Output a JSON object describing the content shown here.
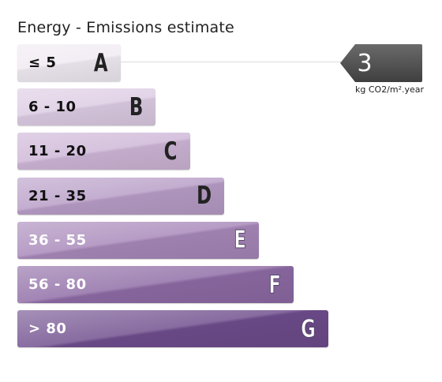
{
  "title": "Energy - Emissions estimate",
  "chart_data": {
    "type": "bar",
    "title": "Energy - Emissions estimate",
    "unit": "kg CO2/m².year",
    "categories": [
      "A",
      "B",
      "C",
      "D",
      "E",
      "F",
      "G"
    ],
    "ranges": [
      "≤ 5",
      "6 - 10",
      "11 - 20",
      "21 - 35",
      "36 - 55",
      "56 - 80",
      "> 80"
    ],
    "colors": [
      "#f0eaf2",
      "#dccbe3",
      "#cdb5d6",
      "#b79cc6",
      "#a787b9",
      "#8d6aa4",
      "#6e4c8c"
    ],
    "highlighted_class": "A",
    "value": "3"
  },
  "indicator": {
    "value": "3",
    "unit": "kg CO2/m².year",
    "color": "#555555"
  }
}
